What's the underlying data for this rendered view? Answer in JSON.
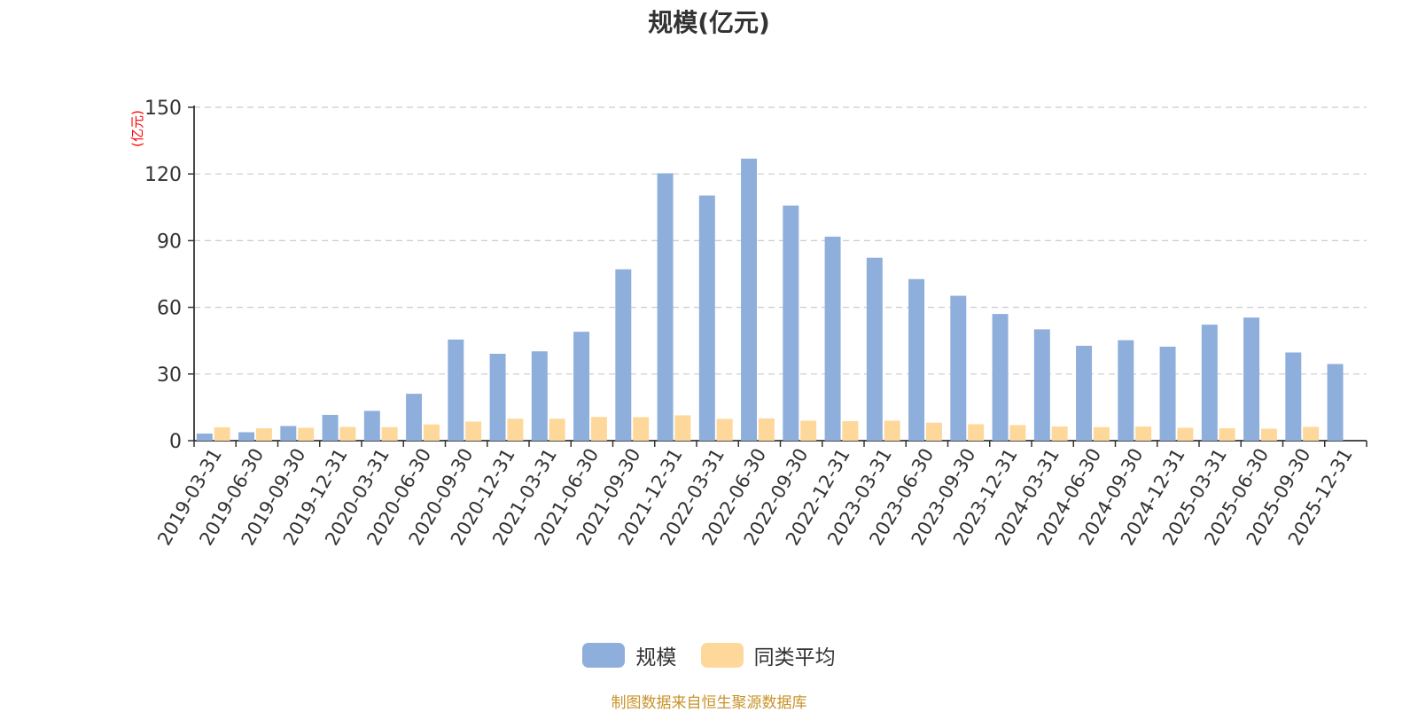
{
  "chart_data": {
    "type": "bar",
    "title": "规模(亿元)",
    "y_unit": "(亿元)",
    "ylim": [
      0,
      150
    ],
    "yticks": [
      0,
      30,
      60,
      90,
      120,
      150
    ],
    "grid": true,
    "legend_position": "bottom",
    "categories": [
      "2019-03-31",
      "2019-06-30",
      "2019-09-30",
      "2019-12-31",
      "2020-03-31",
      "2020-06-30",
      "2020-09-30",
      "2020-12-31",
      "2021-03-31",
      "2021-06-30",
      "2021-09-30",
      "2021-12-31",
      "2022-03-31",
      "2022-06-30",
      "2022-09-30",
      "2022-12-31",
      "2023-03-31",
      "2023-06-30",
      "2023-09-30",
      "2023-12-31",
      "2024-03-31",
      "2024-06-30",
      "2024-09-30",
      "2024-12-31",
      "2025-03-31",
      "2025-06-30",
      "2025-09-30",
      "2025-12-31"
    ],
    "series": [
      {
        "name": "规模",
        "color": "#8eaedb",
        "values": [
          3.2,
          3.8,
          6.6,
          11.6,
          13.4,
          21.1,
          45.5,
          39.1,
          40.2,
          49.0,
          77.1,
          120.3,
          110.3,
          126.9,
          105.8,
          91.8,
          82.3,
          72.7,
          65.2,
          57.0,
          50.1,
          42.7,
          45.2,
          42.3,
          52.2,
          55.4,
          39.7,
          34.5
        ]
      },
      {
        "name": "同类平均",
        "color": "#fdd89a",
        "values": [
          6.0,
          5.6,
          5.8,
          6.2,
          6.1,
          7.3,
          8.6,
          9.9,
          9.9,
          10.7,
          10.6,
          11.4,
          9.8,
          10.0,
          9.0,
          8.8,
          9.0,
          8.1,
          7.4,
          7.0,
          6.4,
          6.1,
          6.4,
          5.8,
          5.6,
          5.4,
          6.2,
          null
        ]
      }
    ]
  },
  "legend": {
    "items": [
      {
        "label": "规模",
        "color": "#8eaedb"
      },
      {
        "label": "同类平均",
        "color": "#fdd89a"
      }
    ]
  },
  "source": "制图数据来自恒生聚源数据库"
}
